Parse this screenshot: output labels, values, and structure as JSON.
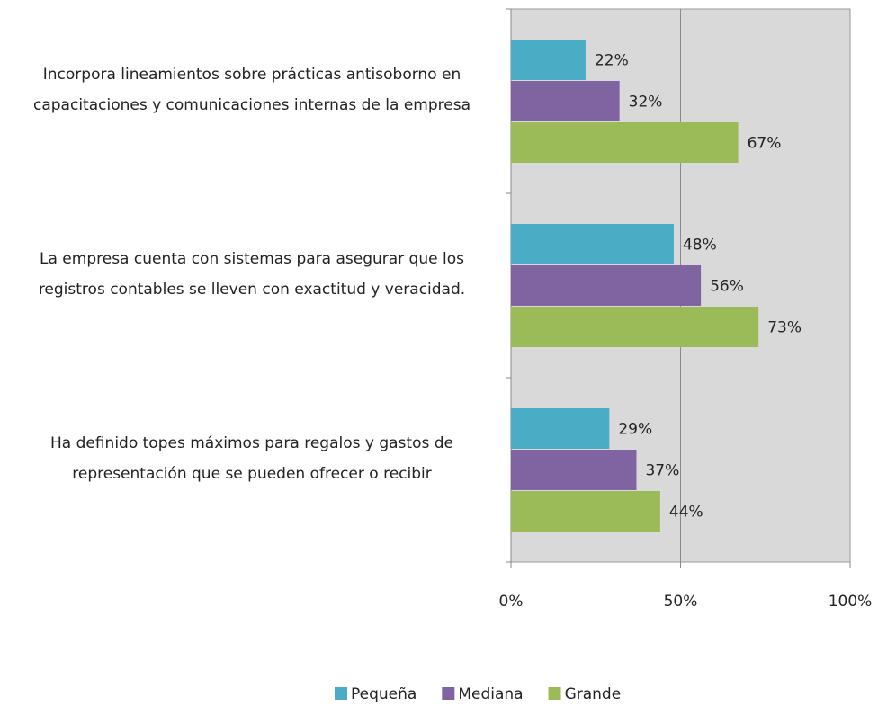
{
  "chart_data": {
    "type": "bar",
    "orientation": "horizontal",
    "categories": [
      "Incorpora lineamientos sobre prácticas antisoborno en capacitaciones y comunicaciones internas de la empresa",
      "La empresa cuenta con sistemas para asegurar que los registros contables se lleven con exactitud y veracidad.",
      "Ha definido topes máximos para regalos y gastos de representación que se pueden ofrecer o recibir"
    ],
    "series": [
      {
        "name": "Pequeña",
        "color": "#4bacc6",
        "values": [
          22,
          48,
          29
        ],
        "value_labels": [
          "22%",
          "48%",
          "29%"
        ]
      },
      {
        "name": "Mediana",
        "color": "#8064a2",
        "values": [
          32,
          56,
          37
        ],
        "value_labels": [
          "32%",
          "56%",
          "37%"
        ]
      },
      {
        "name": "Grande",
        "color": "#9bbb59",
        "values": [
          67,
          73,
          44
        ],
        "value_labels": [
          "67%",
          "73%",
          "44%"
        ]
      }
    ],
    "xlim": [
      0,
      100
    ],
    "xticks": [
      {
        "value": 0,
        "label": "0%"
      },
      {
        "value": 50,
        "label": "50%"
      },
      {
        "value": 100,
        "label": "100%"
      }
    ],
    "grid": true,
    "legend": "bottom"
  }
}
